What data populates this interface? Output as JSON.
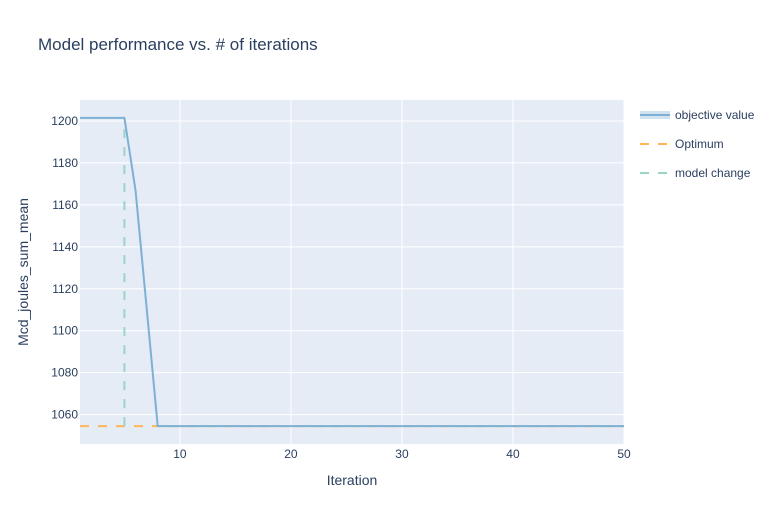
{
  "chart_data": {
    "type": "line",
    "title": "Model performance vs. # of iterations",
    "xlabel": "Iteration",
    "ylabel": "Mcd_joules_sum_mean",
    "xlim": [
      1,
      50
    ],
    "ylim": [
      1046,
      1210
    ],
    "x_ticks": [
      10,
      20,
      30,
      40,
      50
    ],
    "y_ticks": [
      1060,
      1080,
      1100,
      1120,
      1140,
      1160,
      1180,
      1200
    ],
    "grid": true,
    "legend_position": "top-right",
    "series": [
      {
        "name": "objective value",
        "color": "#7eb0d5",
        "style": "solid",
        "x": [
          1,
          2,
          3,
          4,
          5,
          6,
          7,
          8,
          9,
          10,
          11,
          12,
          13,
          14,
          15,
          16,
          17,
          18,
          19,
          20,
          21,
          22,
          23,
          24,
          25,
          26,
          27,
          28,
          29,
          30,
          31,
          32,
          33,
          34,
          35,
          36,
          37,
          38,
          39,
          40,
          41,
          42,
          43,
          44,
          45,
          46,
          47,
          48,
          49,
          50
        ],
        "y": [
          1201.5,
          1201.5,
          1201.5,
          1201.5,
          1201.5,
          1167,
          1111,
          1054.5,
          1054.5,
          1054.5,
          1054.5,
          1054.5,
          1054.5,
          1054.5,
          1054.5,
          1054.5,
          1054.5,
          1054.5,
          1054.5,
          1054.5,
          1054.5,
          1054.5,
          1054.5,
          1054.5,
          1054.5,
          1054.5,
          1054.5,
          1054.5,
          1054.5,
          1054.5,
          1054.5,
          1054.5,
          1054.5,
          1054.5,
          1054.5,
          1054.5,
          1054.5,
          1054.5,
          1054.5,
          1054.5,
          1054.5,
          1054.5,
          1054.5,
          1054.5,
          1054.5,
          1054.5,
          1054.5,
          1054.5,
          1054.5,
          1054.5
        ]
      },
      {
        "name": "Optimum",
        "color": "#ffb55a",
        "style": "dashed",
        "x": [
          1,
          50
        ],
        "y": [
          1054.5,
          1054.5
        ]
      },
      {
        "name": "model change",
        "color": "#9ad5c7",
        "style": "dashed",
        "x": [
          5,
          5,
          5
        ],
        "y": [
          1054.5,
          1201.5,
          1201.5
        ]
      }
    ]
  }
}
